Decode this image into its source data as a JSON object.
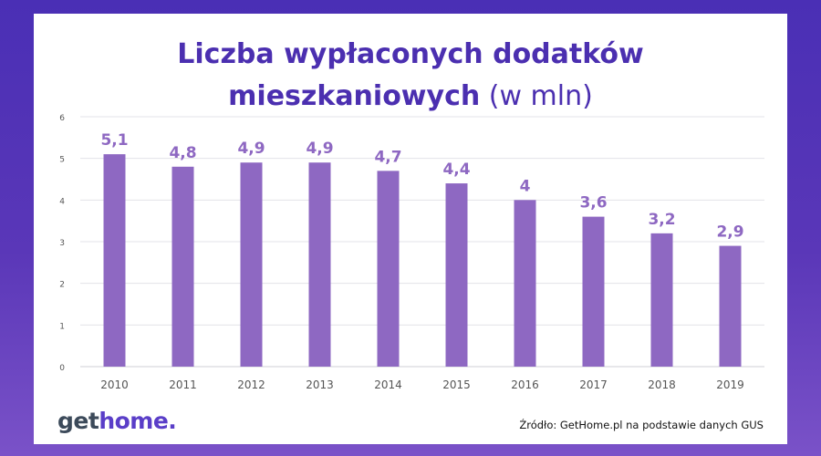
{
  "title": {
    "line1": "Liczba wypłaconych dodatków",
    "line2_bold": "mieszkaniowych",
    "line2_normal": "(w mln)"
  },
  "logo": {
    "part1": "get",
    "part2": "home."
  },
  "source": "Źródło: GetHome.pl na podstawie danych GUS",
  "colors": {
    "bar": "#8e68c2",
    "label": "#8e68c2",
    "title": "#4b2fb0",
    "frame": "#4a2fb5"
  },
  "chart_data": {
    "type": "bar",
    "categories": [
      "2010",
      "2011",
      "2012",
      "2013",
      "2014",
      "2015",
      "2016",
      "2017",
      "2018",
      "2019"
    ],
    "values": [
      5.1,
      4.8,
      4.9,
      4.9,
      4.7,
      4.4,
      4,
      3.6,
      3.2,
      2.9
    ],
    "value_labels": [
      "5,1",
      "4,8",
      "4,9",
      "4,9",
      "4,7",
      "4,4",
      "4",
      "3,6",
      "3,2",
      "2,9"
    ],
    "ylim": [
      0,
      6
    ],
    "yticks": [
      "0",
      "1",
      "2",
      "3",
      "4",
      "5",
      "6"
    ],
    "grid": true,
    "legend": "none"
  }
}
